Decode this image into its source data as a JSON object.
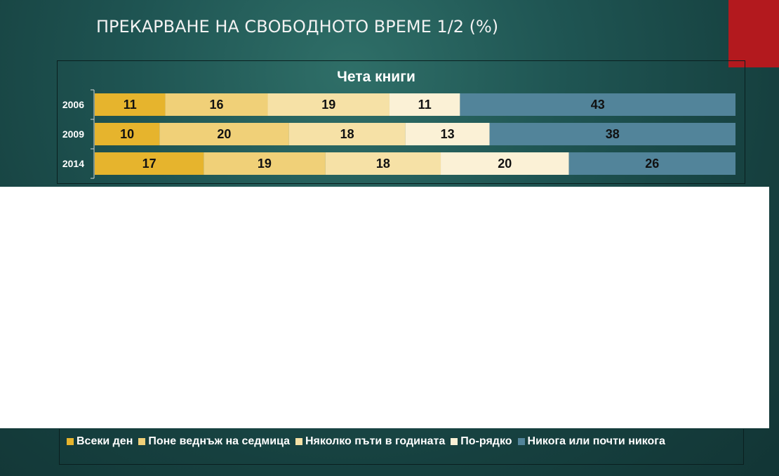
{
  "slide": {
    "title": "ПРЕКАРВАНЕ НА СВОБОДНОТО ВРЕМЕ 1/2 (%)"
  },
  "colors": {
    "accent_red": "#b3191e",
    "series": [
      "#e6b42d",
      "#f0d078",
      "#f6e1a6",
      "#fbf1d6",
      "#52849a"
    ]
  },
  "chart_data": {
    "type": "bar",
    "orientation": "horizontal",
    "stacked": true,
    "title": "Чета книги",
    "categories": [
      "2006",
      "2009",
      "2014"
    ],
    "series": [
      {
        "name": "Всеки ден",
        "values": [
          11,
          10,
          17
        ]
      },
      {
        "name": "Поне веднъж на седмица",
        "values": [
          16,
          20,
          19
        ]
      },
      {
        "name": "Няколко пъти в годината",
        "values": [
          19,
          18,
          18
        ]
      },
      {
        "name": "По-рядко",
        "values": [
          11,
          13,
          20
        ]
      },
      {
        "name": "Никога или почти никога",
        "values": [
          43,
          38,
          26
        ]
      }
    ],
    "legend_position": "bottom",
    "data_labels": true
  }
}
